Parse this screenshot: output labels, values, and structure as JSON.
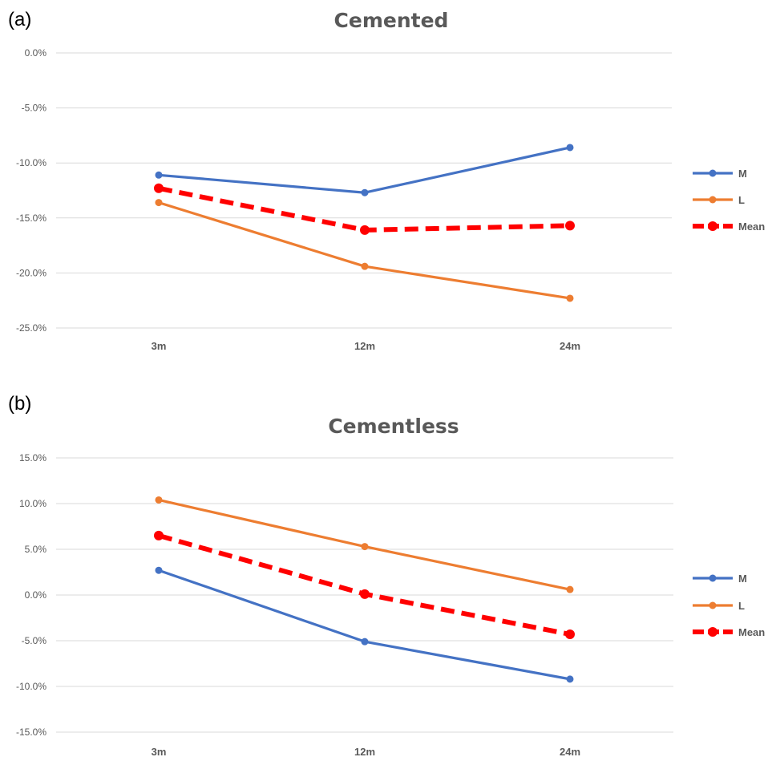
{
  "panels": [
    {
      "label": "(a)",
      "chart_data": {
        "type": "line",
        "title": "Cemented",
        "xlabel": "",
        "ylabel": "",
        "categories": [
          "3m",
          "12m",
          "24m"
        ],
        "y_ticks": [
          "0.0%",
          "-5.0%",
          "-10.0%",
          "-15.0%",
          "-20.0%",
          "-25.0%"
        ],
        "ylim": [
          -25,
          0
        ],
        "y_unit": "%",
        "grid": true,
        "legend_position": "right",
        "series": [
          {
            "name": "M",
            "values": [
              -11.1,
              -12.7,
              -8.6
            ],
            "color": "#4472c4",
            "dashed": false
          },
          {
            "name": "L",
            "values": [
              -13.6,
              -19.4,
              -22.3
            ],
            "color": "#ed7d31",
            "dashed": false
          },
          {
            "name": "Mean",
            "values": [
              -12.3,
              -16.1,
              -15.7
            ],
            "color": "#ff0000",
            "dashed": true
          }
        ]
      }
    },
    {
      "label": "(b)",
      "chart_data": {
        "type": "line",
        "title": "Cementless",
        "xlabel": "",
        "ylabel": "",
        "categories": [
          "3m",
          "12m",
          "24m"
        ],
        "y_ticks": [
          "15.0%",
          "10.0%",
          "5.0%",
          "0.0%",
          "-5.0%",
          "-10.0%",
          "-15.0%"
        ],
        "ylim": [
          -15,
          15
        ],
        "y_unit": "%",
        "grid": true,
        "legend_position": "right",
        "series": [
          {
            "name": "M",
            "values": [
              2.7,
              -5.1,
              -9.2
            ],
            "color": "#4472c4",
            "dashed": false
          },
          {
            "name": "L",
            "values": [
              10.4,
              5.3,
              0.6
            ],
            "color": "#ed7d31",
            "dashed": false
          },
          {
            "name": "Mean",
            "values": [
              6.5,
              0.1,
              -4.3
            ],
            "color": "#ff0000",
            "dashed": true
          }
        ]
      }
    }
  ]
}
